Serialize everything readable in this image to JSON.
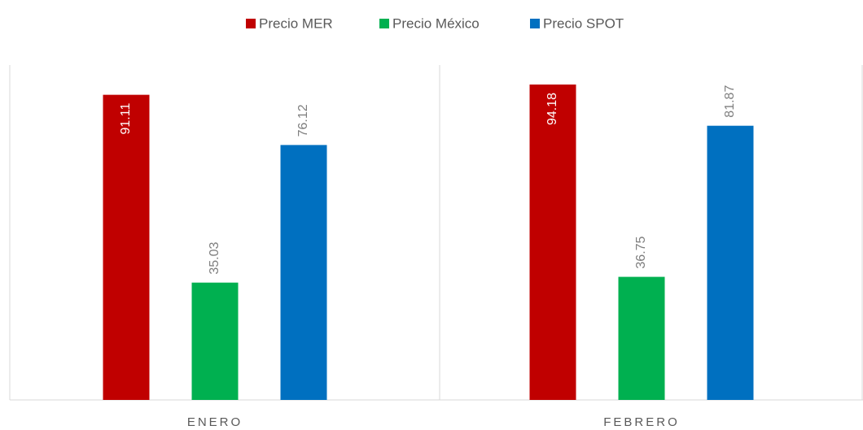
{
  "chart_data": {
    "type": "bar",
    "categories": [
      "ENERO",
      "FEBRERO"
    ],
    "series": [
      {
        "name": "Precio MER",
        "color": "#c00000",
        "values": [
          91.11,
          94.18
        ]
      },
      {
        "name": "Precio México",
        "color": "#00b050",
        "values": [
          35.03,
          36.75
        ]
      },
      {
        "name": "Precio SPOT",
        "color": "#0070c0",
        "values": [
          76.12,
          81.87
        ]
      }
    ],
    "ylim": [
      0,
      100
    ],
    "legend": "top"
  }
}
